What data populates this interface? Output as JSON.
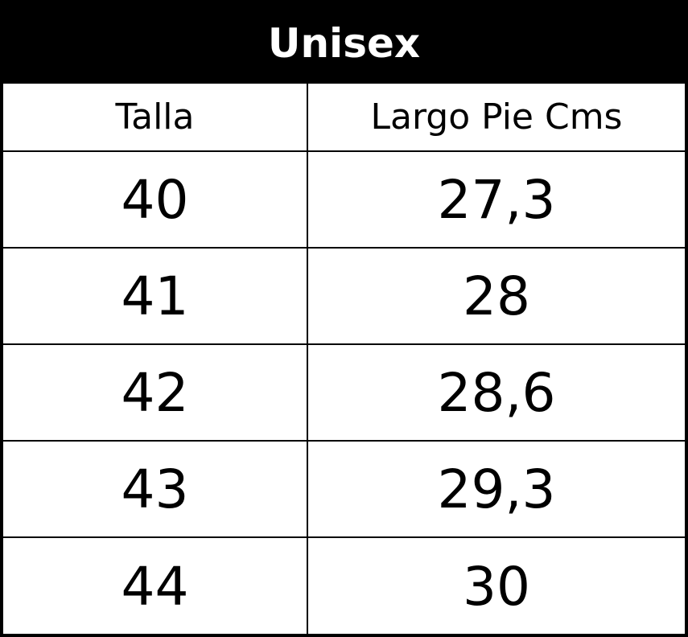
{
  "table": {
    "title": "Unisex",
    "headers": [
      "Talla",
      "Largo Pie Cms"
    ],
    "rows": [
      [
        "40",
        "27,3"
      ],
      [
        "41",
        "28"
      ],
      [
        "42",
        "28,6"
      ],
      [
        "43",
        "29,3"
      ],
      [
        "44",
        "30"
      ]
    ]
  }
}
